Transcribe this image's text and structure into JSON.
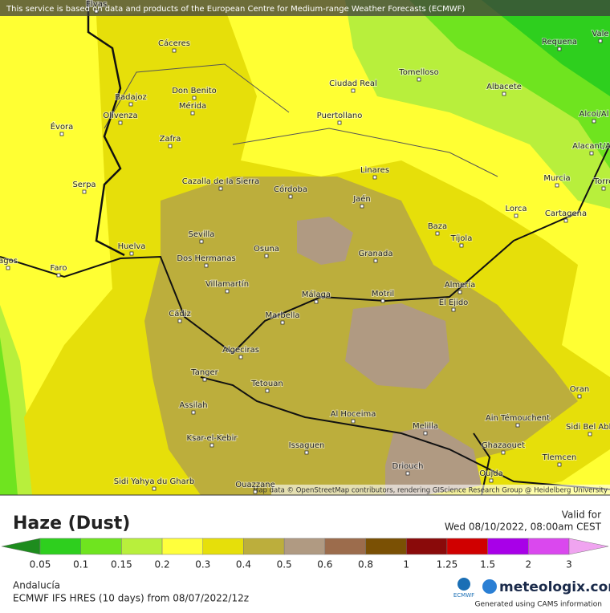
{
  "banner": "This service is based on data and products of the European Centre for Medium-range Weather Forecasts (ECMWF)",
  "attribution": "Map data © OpenStreetMap contributors, rendering GIScience Research Group @ Heidelberg University",
  "cities": [
    "Cáceres",
    "Badajoz",
    "Don Benito",
    "Mérida",
    "Olivenza",
    "Évora",
    "Zafra",
    "Ciudad Real",
    "Tomelloso",
    "Albacete",
    "Requena",
    "Vale",
    "Puertollano",
    "Linares",
    "Murcia",
    "Alcoi/Al",
    "Alacant/A",
    "Serpa",
    "Cazalla de la Sierra",
    "Córdoba",
    "Jaén",
    "Lorca",
    "Cartagena",
    "Baza",
    "Tíjola",
    "Sevilla",
    "Huelva",
    "Osuna",
    "Granada",
    "Dos Hermanas",
    "Faro",
    "agos",
    "Almería",
    "Villamartín",
    "Málaga",
    "Motril",
    "El Ejido",
    "Marbella",
    "Cádiz",
    "Algeciras",
    "Tanger",
    "Tetouan",
    "Oran",
    "Assilah",
    "Al Hoceima",
    "Melilla",
    "Ain Témouchent",
    "Sidi Bel Abb",
    "Ksar-el-Kebir",
    "Ghazaouet",
    "Issaguen",
    "Tlemcen",
    "Driouch",
    "Oujda",
    "Sidi Yahya du Gharb",
    "Ouazzane",
    "Elvas",
    "Torre"
  ],
  "legend": {
    "title": "Haze (Dust)",
    "valid_label": "Valid for",
    "valid_time": "Wed 08/10/2022, 08:00am CEST",
    "ticks": [
      "0.05",
      "0.1",
      "0.15",
      "0.2",
      "0.3",
      "0.4",
      "0.5",
      "0.6",
      "0.8",
      "1",
      "1.25",
      "1.5",
      "2",
      "3"
    ],
    "colors": [
      "#1e8c1e",
      "#2ecf1e",
      "#6fe41f",
      "#b8ef3c",
      "#ffff3c",
      "#e6df0a",
      "#bcae3c",
      "#b09a82",
      "#9c6c4c",
      "#7a5004",
      "#8a0a0a",
      "#d00000",
      "#a800e8",
      "#da48ee",
      "#f0a4f0"
    ]
  },
  "footer": {
    "region": "Andalucía",
    "model": "ECMWF IFS HRES (10 days) from 08/07/2022/12z",
    "ecmwf": "ECMWF",
    "brand": "meteologix.com",
    "cams": "Generated using CAMS information"
  }
}
